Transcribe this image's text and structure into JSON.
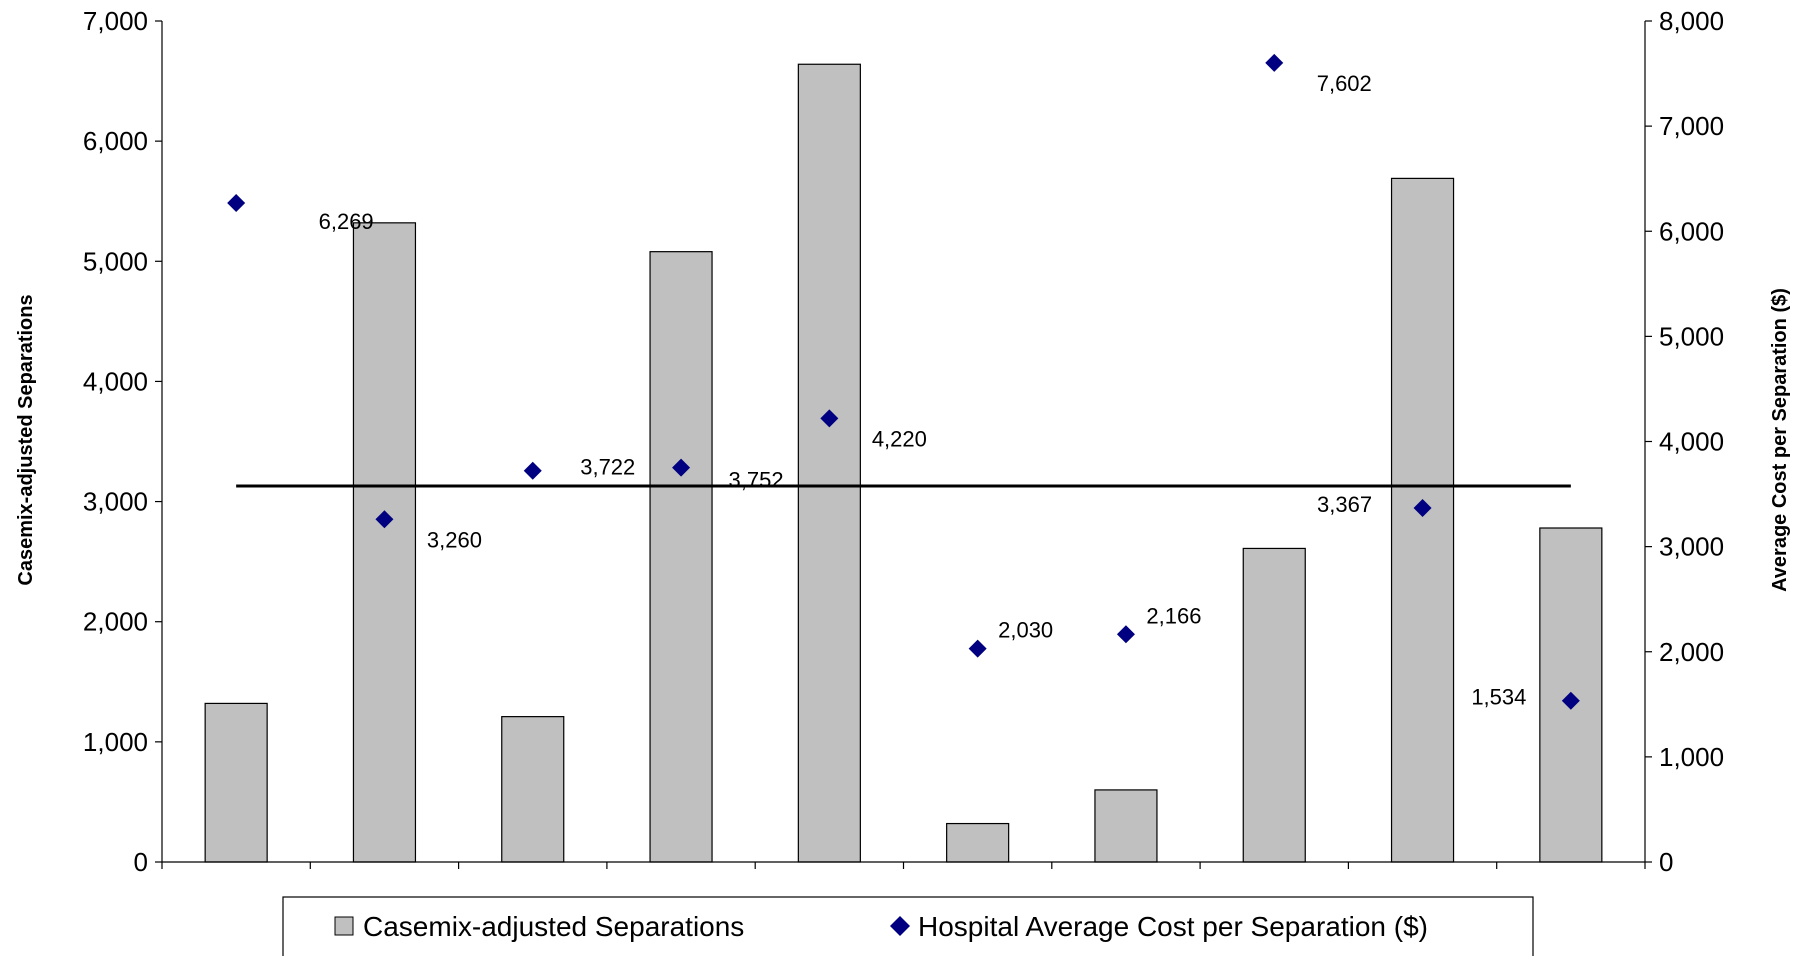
{
  "chart_data": {
    "type": "bar",
    "title": "",
    "ylabel_left": "Casemix-adjusted Separations",
    "ylabel_right": "Average Cost per Separation ($)",
    "ylim_left": [
      0,
      7000
    ],
    "ylim_right": [
      0,
      8000
    ],
    "yticks_left": [
      "0",
      "1,000",
      "2,000",
      "3,000",
      "4,000",
      "5,000",
      "6,000",
      "7,000"
    ],
    "yticks_right": [
      "0",
      "1,000",
      "2,000",
      "3,000",
      "4,000",
      "5,000",
      "6,000",
      "7,000",
      "8,000"
    ],
    "grid": false,
    "categories": [
      "",
      "",
      "",
      "",
      "",
      "",
      "",
      "",
      "",
      ""
    ],
    "series": [
      {
        "name": "Casemix-adjusted Separations",
        "type": "bar",
        "axis": "left",
        "color": "#c0c0c0",
        "values": [
          1320,
          5320,
          1210,
          5080,
          6640,
          320,
          600,
          2610,
          5690,
          2780
        ]
      },
      {
        "name": "Hospital Average Cost per Separation ($)",
        "type": "scatter",
        "axis": "right",
        "color": "#000080",
        "values": [
          6269,
          3260,
          3722,
          3752,
          4220,
          2030,
          2166,
          7602,
          3367,
          1534
        ],
        "labels": [
          "6,269",
          "3,260",
          "3,722",
          "3,752",
          "4,220",
          "2,030",
          "2,166",
          "7,602",
          "3,367",
          "1,534"
        ]
      }
    ],
    "reference_line": {
      "axis": "left",
      "value": 3130,
      "color": "#000000"
    },
    "legend": {
      "placement": "bottom",
      "items": [
        {
          "label": "Casemix-adjusted Separations",
          "marker": "square",
          "color": "#c0c0c0"
        },
        {
          "label": "Hospital Average Cost per Separation ($)",
          "marker": "diamond",
          "color": "#000080"
        }
      ]
    }
  }
}
